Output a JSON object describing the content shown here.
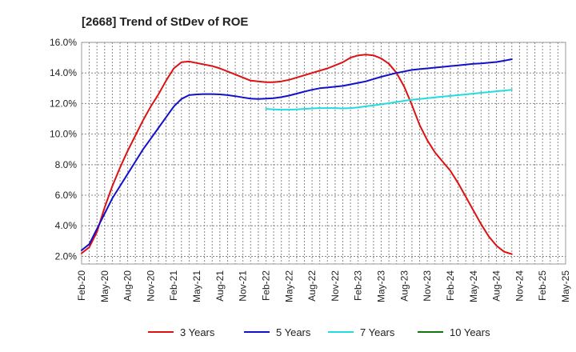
{
  "chart_data": {
    "type": "line",
    "title": "[2668]  Trend of StDev of ROE",
    "xlabel": "",
    "ylabel": "",
    "x_tick_labels": [
      "Feb-20",
      "May-20",
      "Aug-20",
      "Nov-20",
      "Feb-21",
      "May-21",
      "Aug-21",
      "Nov-21",
      "Feb-22",
      "May-22",
      "Aug-22",
      "Nov-22",
      "Feb-23",
      "May-23",
      "Aug-23",
      "Nov-23",
      "Feb-24",
      "May-24",
      "Aug-24",
      "Nov-24",
      "Feb-25",
      "May-25"
    ],
    "y_tick_labels": [
      "2.0%",
      "4.0%",
      "6.0%",
      "8.0%",
      "10.0%",
      "12.0%",
      "14.0%",
      "16.0%"
    ],
    "y_ticks": [
      2,
      4,
      6,
      8,
      10,
      12,
      14,
      16
    ],
    "ylim": [
      1.5,
      16
    ],
    "grid": true,
    "legend_position": "bottom",
    "series": [
      {
        "name": "3 Years",
        "color": "#dd1111",
        "values": [
          2.2,
          2.6,
          3.6,
          5.2,
          6.6,
          7.8,
          8.9,
          9.9,
          10.9,
          11.8,
          12.6,
          13.5,
          14.3,
          14.7,
          14.75,
          14.65,
          14.55,
          14.45,
          14.3,
          14.1,
          13.9,
          13.7,
          13.5,
          13.45,
          13.4,
          13.4,
          13.45,
          13.55,
          13.7,
          13.85,
          14.0,
          14.15,
          14.3,
          14.5,
          14.7,
          15.0,
          15.15,
          15.2,
          15.15,
          14.95,
          14.6,
          14.0,
          13.1,
          11.9,
          10.6,
          9.6,
          8.8,
          8.2,
          7.6,
          6.8,
          5.9,
          5.0,
          4.1,
          3.3,
          2.7,
          2.3,
          2.15
        ]
      },
      {
        "name": "5 Years",
        "color": "#1111cc",
        "values": [
          2.4,
          2.8,
          3.8,
          4.8,
          5.8,
          6.6,
          7.4,
          8.2,
          9.0,
          9.7,
          10.4,
          11.1,
          11.8,
          12.3,
          12.55,
          12.6,
          12.62,
          12.62,
          12.6,
          12.55,
          12.48,
          12.4,
          12.32,
          12.3,
          12.32,
          12.35,
          12.42,
          12.52,
          12.65,
          12.78,
          12.9,
          13.0,
          13.05,
          13.1,
          13.15,
          13.25,
          13.35,
          13.45,
          13.6,
          13.75,
          13.88,
          14.0,
          14.1,
          14.2,
          14.25,
          14.3,
          14.35,
          14.4,
          14.45,
          14.5,
          14.55,
          14.6,
          14.63,
          14.67,
          14.72,
          14.8,
          14.9
        ]
      },
      {
        "name": "7 Years",
        "color": "#22dddd",
        "values": [
          null,
          null,
          null,
          null,
          null,
          null,
          null,
          null,
          null,
          null,
          null,
          null,
          null,
          null,
          null,
          null,
          null,
          null,
          null,
          null,
          null,
          null,
          null,
          null,
          11.65,
          11.62,
          11.6,
          11.6,
          11.62,
          11.65,
          11.68,
          11.7,
          11.7,
          11.7,
          11.68,
          11.7,
          11.75,
          11.82,
          11.88,
          11.95,
          12.02,
          12.1,
          12.18,
          12.25,
          12.3,
          12.35,
          12.4,
          12.45,
          12.5,
          12.55,
          12.6,
          12.65,
          12.7,
          12.75,
          12.8,
          12.85,
          12.9
        ]
      },
      {
        "name": "10 Years",
        "color": "#117711",
        "values": []
      }
    ]
  }
}
